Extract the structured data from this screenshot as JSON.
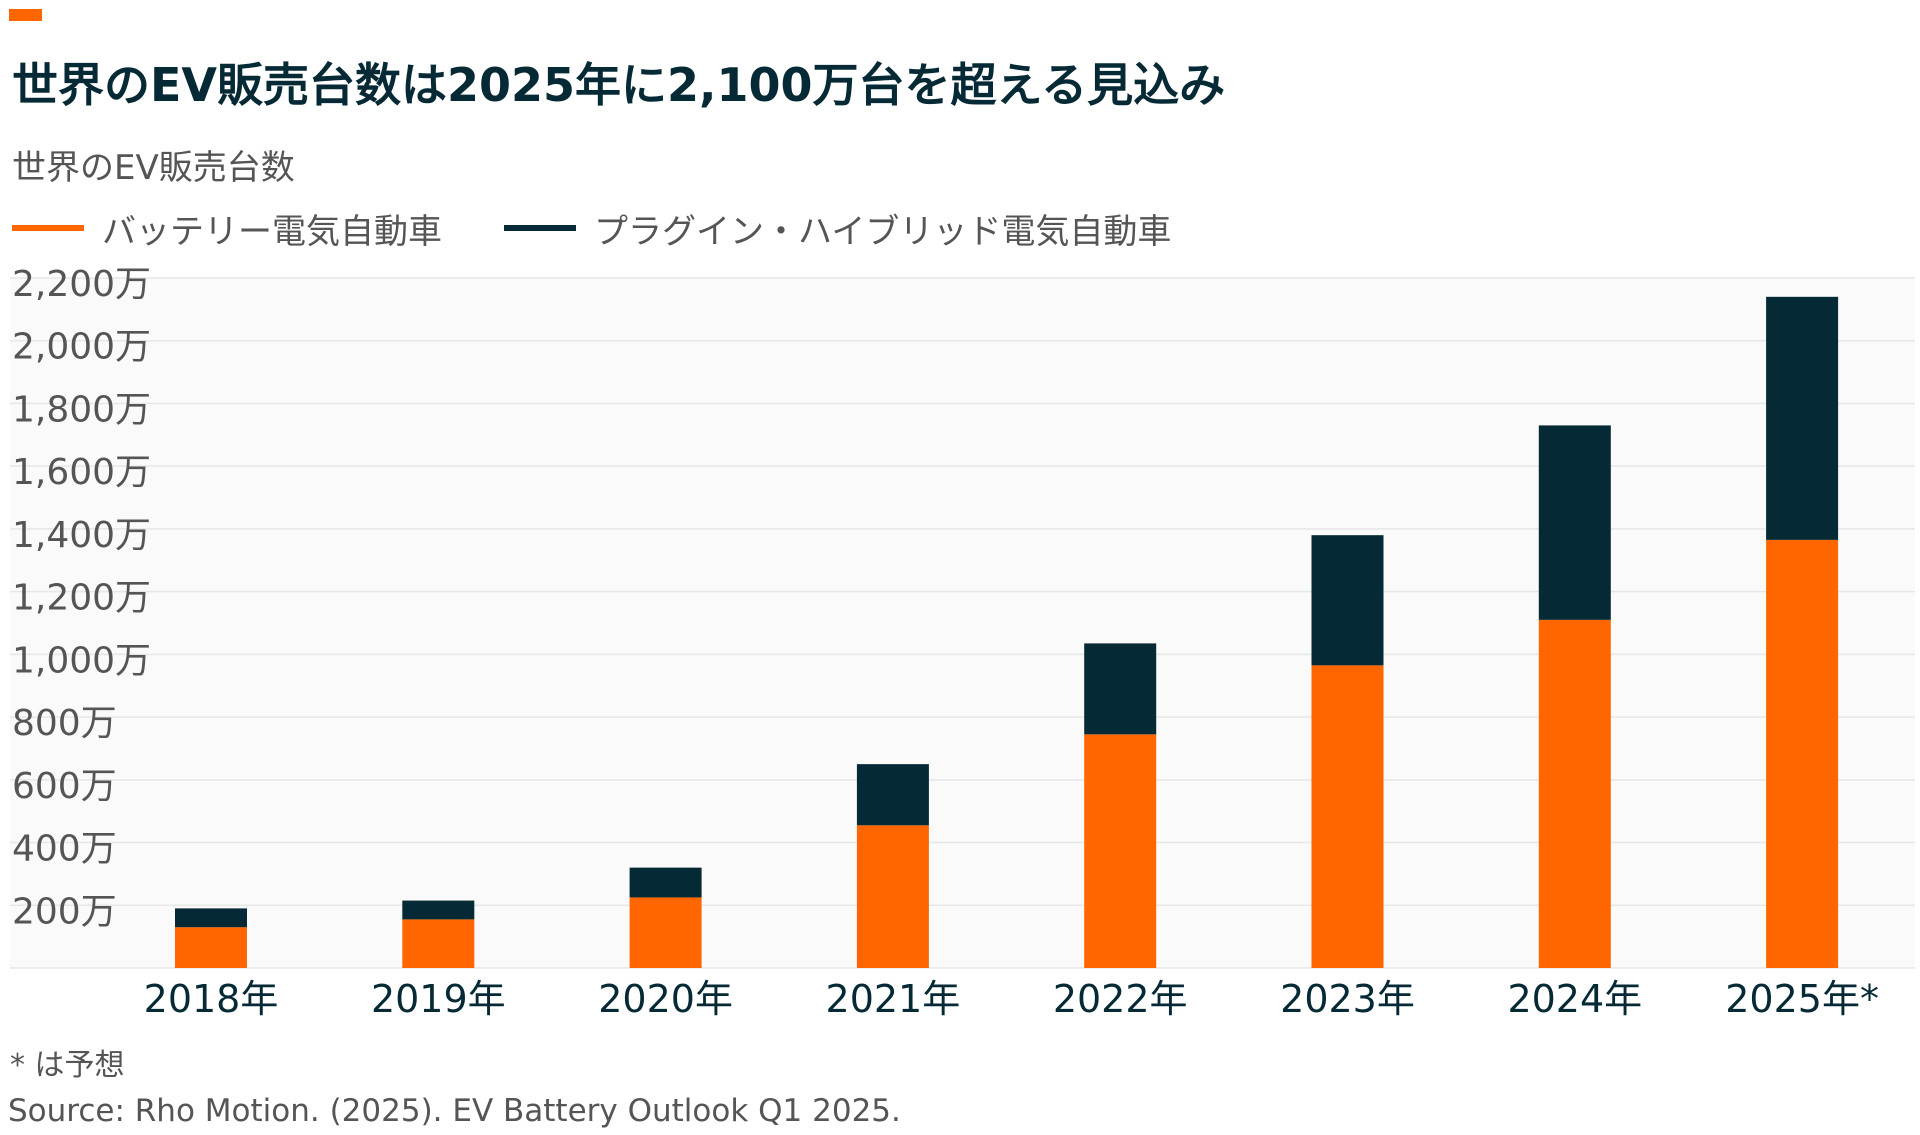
{
  "title": "世界のEV販売台数は2025年に2,100万台を超える見込み",
  "subtitle": "世界のEV販売台数",
  "legend": [
    {
      "label": "バッテリー電気自動車",
      "color": "#ff6600"
    },
    {
      "label": "プラグイン・ハイブリッド電気自動車",
      "color": "#062a35"
    }
  ],
  "footnote": "* は予想",
  "source": "Source: Rho Motion. (2025). EV Battery Outlook Q1 2025.",
  "colors": {
    "accent": "#ff6600",
    "bev": "#ff6600",
    "phev": "#062a35",
    "plot_background": "#f9faf9",
    "gridline": "#e6e8e6"
  },
  "chart_data": {
    "type": "bar",
    "stacked": true,
    "categories": [
      "2018年",
      "2019年",
      "2020年",
      "2021年",
      "2022年",
      "2023年",
      "2024年",
      "2025年*"
    ],
    "series": [
      {
        "name": "バッテリー電気自動車",
        "color": "#ff6600",
        "values": [
          130,
          155,
          225,
          455,
          745,
          965,
          1110,
          1365
        ]
      },
      {
        "name": "プラグイン・ハイブリッド電気自動車",
        "color": "#062a35",
        "values": [
          60,
          60,
          95,
          195,
          290,
          415,
          620,
          775
        ]
      }
    ],
    "ylim": [
      0,
      2200
    ],
    "yticks": [
      200,
      400,
      600,
      800,
      1000,
      1200,
      1400,
      1600,
      1800,
      2000,
      2200
    ],
    "ytick_labels": [
      "200万",
      "400万",
      "600万",
      "800万",
      "1,000万",
      "1,200万",
      "1,400万",
      "1,600万",
      "1,800万",
      "2,000万",
      "2,200万"
    ],
    "grid": true,
    "legend_position": "top-left"
  }
}
